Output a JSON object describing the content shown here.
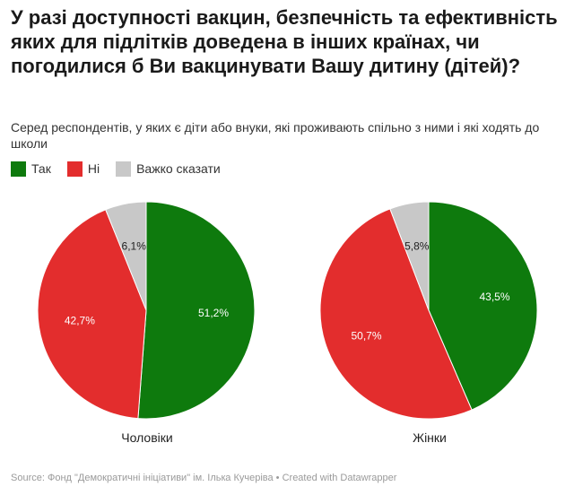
{
  "title": "У разі доступності вакцин, безпечність та ефективність яких для підлітків доведена в інших країнах, чи погодилися б Ви вакцинувати Вашу дитину (дітей)?",
  "subtitle": "Серед респондентів, у яких є діти або внуки, які проживають спільно з ними і які ходять до школи",
  "legend": [
    {
      "label": "Так",
      "color": "#0e7a0d"
    },
    {
      "label": "Ні",
      "color": "#e32d2d"
    },
    {
      "label": "Важко сказати",
      "color": "#c8c8c8"
    }
  ],
  "source": "Source: Фонд \"Демократичні ініціативи\" ім. Ількa Кучеріва • Created with Datawrapper",
  "chart_data": [
    {
      "type": "pie",
      "title": "Чоловіки",
      "slices": [
        {
          "label": "Так",
          "value": 51.2,
          "display": "51,2%",
          "color": "#0e7a0d"
        },
        {
          "label": "Ні",
          "value": 42.7,
          "display": "42,7%",
          "color": "#e32d2d"
        },
        {
          "label": "Важко сказати",
          "value": 6.1,
          "display": "6,1%",
          "color": "#c8c8c8"
        }
      ]
    },
    {
      "type": "pie",
      "title": "Жінки",
      "slices": [
        {
          "label": "Так",
          "value": 43.5,
          "display": "43,5%",
          "color": "#0e7a0d"
        },
        {
          "label": "Ні",
          "value": 50.7,
          "display": "50,7%",
          "color": "#e32d2d"
        },
        {
          "label": "Важко сказати",
          "value": 5.8,
          "display": "5,8%",
          "color": "#c8c8c8"
        }
      ]
    }
  ]
}
